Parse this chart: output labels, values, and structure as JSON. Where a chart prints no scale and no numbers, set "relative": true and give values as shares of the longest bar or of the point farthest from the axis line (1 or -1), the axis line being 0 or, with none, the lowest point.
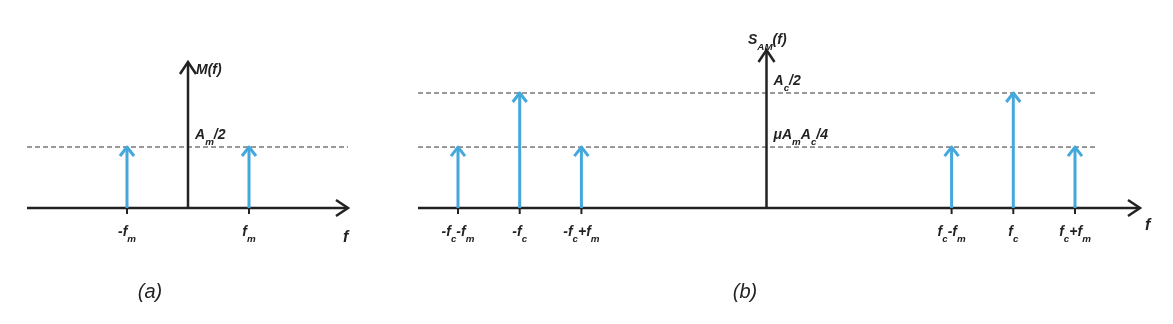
{
  "chart_data": [
    {
      "type": "bar",
      "title": "(a)",
      "ylabel": "M(f)",
      "xlabel": "f",
      "relative": true,
      "color": "#45a8dc",
      "categories": [
        "-f$_{m}$",
        null,
        "f$_{m}$"
      ],
      "values": [
        1,
        null,
        1
      ],
      "ref_lines": [
        {
          "axis": "y",
          "value": 1,
          "label": "A$_{m}$/2",
          "line_style": "dashed"
        }
      ]
    },
    {
      "type": "bar",
      "title": "(b)",
      "ylabel": "S$_{AM}$(f)",
      "xlabel": "f",
      "relative": true,
      "color": "#45a8dc",
      "categories": [
        "-f$_{c}$-f$_{m}$",
        "-f$_{c}$",
        "-f$_{c}$+f$_{m}$",
        null,
        null,
        null,
        null,
        null,
        "f$_{c}$-f$_{m}$",
        "f$_{c}$",
        "f$_{c}$+f$_{m}$"
      ],
      "values": [
        0.53,
        1,
        0.53,
        null,
        null,
        null,
        null,
        null,
        0.53,
        1,
        0.53
      ],
      "ref_lines": [
        {
          "axis": "y",
          "value": 1,
          "label": "A$_{c}$/2",
          "line_style": "dashed"
        },
        {
          "axis": "y",
          "value": 0.53,
          "label": "μA$_{m}$A$_{c}$/4",
          "line_style": "dashed"
        }
      ]
    }
  ]
}
